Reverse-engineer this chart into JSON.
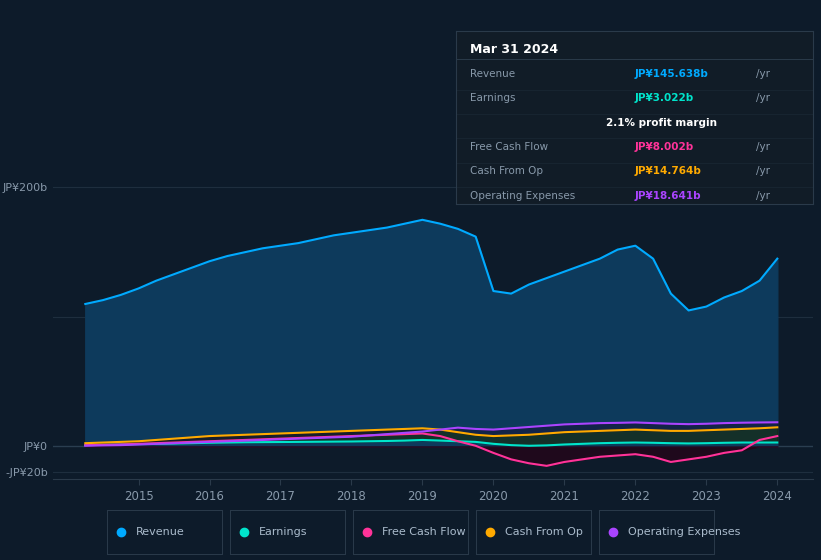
{
  "background_color": "#0d1b2a",
  "plot_bg_color": "#0d1b2a",
  "ylim": [
    -25,
    215
  ],
  "xlim": [
    2013.8,
    2024.5
  ],
  "series": {
    "Revenue": {
      "color": "#00aaff",
      "fill_color": "#0d3a5c",
      "x": [
        2014.25,
        2014.5,
        2014.75,
        2015.0,
        2015.25,
        2015.5,
        2015.75,
        2016.0,
        2016.25,
        2016.5,
        2016.75,
        2017.0,
        2017.25,
        2017.5,
        2017.75,
        2018.0,
        2018.25,
        2018.5,
        2018.75,
        2019.0,
        2019.25,
        2019.5,
        2019.75,
        2020.0,
        2020.25,
        2020.5,
        2020.75,
        2021.0,
        2021.25,
        2021.5,
        2021.75,
        2022.0,
        2022.25,
        2022.5,
        2022.75,
        2023.0,
        2023.25,
        2023.5,
        2023.75,
        2024.0
      ],
      "y": [
        110,
        113,
        117,
        122,
        128,
        133,
        138,
        143,
        147,
        150,
        153,
        155,
        157,
        160,
        163,
        165,
        167,
        169,
        172,
        175,
        172,
        168,
        162,
        120,
        118,
        125,
        130,
        135,
        140,
        145,
        152,
        155,
        145,
        118,
        105,
        108,
        115,
        120,
        128,
        145
      ]
    },
    "Earnings": {
      "color": "#00e5cc",
      "x": [
        2014.25,
        2014.5,
        2014.75,
        2015.0,
        2015.25,
        2015.5,
        2015.75,
        2016.0,
        2016.25,
        2016.5,
        2016.75,
        2017.0,
        2017.25,
        2017.5,
        2017.75,
        2018.0,
        2018.25,
        2018.5,
        2018.75,
        2019.0,
        2019.25,
        2019.5,
        2019.75,
        2020.0,
        2020.25,
        2020.5,
        2020.75,
        2021.0,
        2021.25,
        2021.5,
        2021.75,
        2022.0,
        2022.25,
        2022.5,
        2022.75,
        2023.0,
        2023.25,
        2023.5,
        2023.75,
        2024.0
      ],
      "y": [
        1.0,
        1.2,
        1.5,
        1.8,
        2.0,
        2.2,
        2.5,
        2.8,
        3.0,
        3.2,
        3.3,
        3.4,
        3.5,
        3.6,
        3.7,
        3.8,
        4.0,
        4.2,
        4.5,
        5.0,
        4.5,
        4.0,
        3.5,
        2.0,
        1.0,
        0.5,
        0.8,
        1.5,
        2.0,
        2.5,
        2.8,
        3.0,
        2.8,
        2.5,
        2.3,
        2.5,
        2.8,
        3.0,
        3.0,
        3.022
      ]
    },
    "Free Cash Flow": {
      "color": "#ff3399",
      "x": [
        2014.25,
        2014.5,
        2014.75,
        2015.0,
        2015.25,
        2015.5,
        2015.75,
        2016.0,
        2016.25,
        2016.5,
        2016.75,
        2017.0,
        2017.25,
        2017.5,
        2017.75,
        2018.0,
        2018.25,
        2018.5,
        2018.75,
        2019.0,
        2019.25,
        2019.5,
        2019.75,
        2020.0,
        2020.25,
        2020.5,
        2020.75,
        2021.0,
        2021.25,
        2021.5,
        2021.75,
        2022.0,
        2022.25,
        2022.5,
        2022.75,
        2023.0,
        2023.25,
        2023.5,
        2023.75,
        2024.0
      ],
      "y": [
        1.0,
        1.2,
        1.5,
        2.0,
        2.5,
        3.0,
        3.5,
        4.0,
        4.5,
        5.0,
        5.5,
        6.0,
        6.5,
        7.0,
        7.5,
        8.0,
        8.5,
        9.0,
        9.5,
        10.0,
        8.0,
        4.0,
        0.5,
        -5.0,
        -10.0,
        -13.0,
        -15.0,
        -12.0,
        -10.0,
        -8.0,
        -7.0,
        -6.0,
        -8.0,
        -12.0,
        -10.0,
        -8.0,
        -5.0,
        -3.0,
        5.0,
        8.0
      ]
    },
    "Cash From Op": {
      "color": "#ffaa00",
      "x": [
        2014.25,
        2014.5,
        2014.75,
        2015.0,
        2015.25,
        2015.5,
        2015.75,
        2016.0,
        2016.25,
        2016.5,
        2016.75,
        2017.0,
        2017.25,
        2017.5,
        2017.75,
        2018.0,
        2018.25,
        2018.5,
        2018.75,
        2019.0,
        2019.25,
        2019.5,
        2019.75,
        2020.0,
        2020.25,
        2020.5,
        2020.75,
        2021.0,
        2021.25,
        2021.5,
        2021.75,
        2022.0,
        2022.25,
        2022.5,
        2022.75,
        2023.0,
        2023.25,
        2023.5,
        2023.75,
        2024.0
      ],
      "y": [
        2.5,
        3.0,
        3.5,
        4.0,
        5.0,
        6.0,
        7.0,
        8.0,
        8.5,
        9.0,
        9.5,
        10.0,
        10.5,
        11.0,
        11.5,
        12.0,
        12.5,
        13.0,
        13.5,
        14.0,
        13.0,
        11.0,
        9.0,
        8.0,
        8.5,
        9.0,
        10.0,
        11.0,
        11.5,
        12.0,
        12.5,
        13.0,
        12.5,
        12.0,
        12.0,
        12.5,
        13.0,
        13.5,
        14.0,
        14.764
      ]
    },
    "Operating Expenses": {
      "color": "#aa44ff",
      "x": [
        2014.25,
        2014.5,
        2014.75,
        2015.0,
        2015.25,
        2015.5,
        2015.75,
        2016.0,
        2016.25,
        2016.5,
        2016.75,
        2017.0,
        2017.25,
        2017.5,
        2017.75,
        2018.0,
        2018.25,
        2018.5,
        2018.75,
        2019.0,
        2019.25,
        2019.5,
        2019.75,
        2020.0,
        2020.25,
        2020.5,
        2020.75,
        2021.0,
        2021.25,
        2021.5,
        2021.75,
        2022.0,
        2022.25,
        2022.5,
        2022.75,
        2023.0,
        2023.25,
        2023.5,
        2023.75,
        2024.0
      ],
      "y": [
        0.5,
        0.8,
        1.0,
        1.5,
        2.0,
        2.5,
        3.0,
        3.5,
        4.0,
        4.5,
        5.0,
        5.5,
        6.0,
        6.5,
        7.0,
        7.5,
        8.5,
        9.5,
        10.5,
        11.5,
        13.0,
        14.5,
        13.5,
        13.0,
        14.0,
        15.0,
        16.0,
        17.0,
        17.5,
        18.0,
        18.2,
        18.5,
        18.0,
        17.5,
        17.2,
        17.5,
        18.0,
        18.3,
        18.5,
        18.641
      ]
    }
  },
  "tooltip": {
    "date": "Mar 31 2024",
    "bg_color": "#111c27",
    "border_color": "#2a3a4a",
    "rows": [
      {
        "label": "Revenue",
        "value": "JP¥145.638b",
        "unit": "/yr",
        "value_color": "#00aaff",
        "label_color": "#8899aa"
      },
      {
        "label": "Earnings",
        "value": "JP¥3.022b",
        "unit": "/yr",
        "value_color": "#00e5cc",
        "label_color": "#8899aa"
      },
      {
        "label": "",
        "value": "2.1%",
        "unit": " profit margin",
        "value_color": "#ffffff",
        "label_color": "#8899aa"
      },
      {
        "label": "Free Cash Flow",
        "value": "JP¥8.002b",
        "unit": "/yr",
        "value_color": "#ff3399",
        "label_color": "#8899aa"
      },
      {
        "label": "Cash From Op",
        "value": "JP¥14.764b",
        "unit": "/yr",
        "value_color": "#ffaa00",
        "label_color": "#8899aa"
      },
      {
        "label": "Operating Expenses",
        "value": "JP¥18.641b",
        "unit": "/yr",
        "value_color": "#aa44ff",
        "label_color": "#8899aa"
      }
    ]
  },
  "legend": [
    {
      "label": "Revenue",
      "color": "#00aaff"
    },
    {
      "label": "Earnings",
      "color": "#00e5cc"
    },
    {
      "label": "Free Cash Flow",
      "color": "#ff3399"
    },
    {
      "label": "Cash From Op",
      "color": "#ffaa00"
    },
    {
      "label": "Operating Expenses",
      "color": "#aa44ff"
    }
  ],
  "x_ticks": [
    2015,
    2016,
    2017,
    2018,
    2019,
    2020,
    2021,
    2022,
    2023,
    2024
  ],
  "y_ticks": [
    200,
    0,
    -20
  ],
  "y_tick_labels": [
    "JP¥200b",
    "JP¥0",
    "-JP¥20b"
  ],
  "grid_lines": [
    200,
    100,
    0,
    -20
  ]
}
